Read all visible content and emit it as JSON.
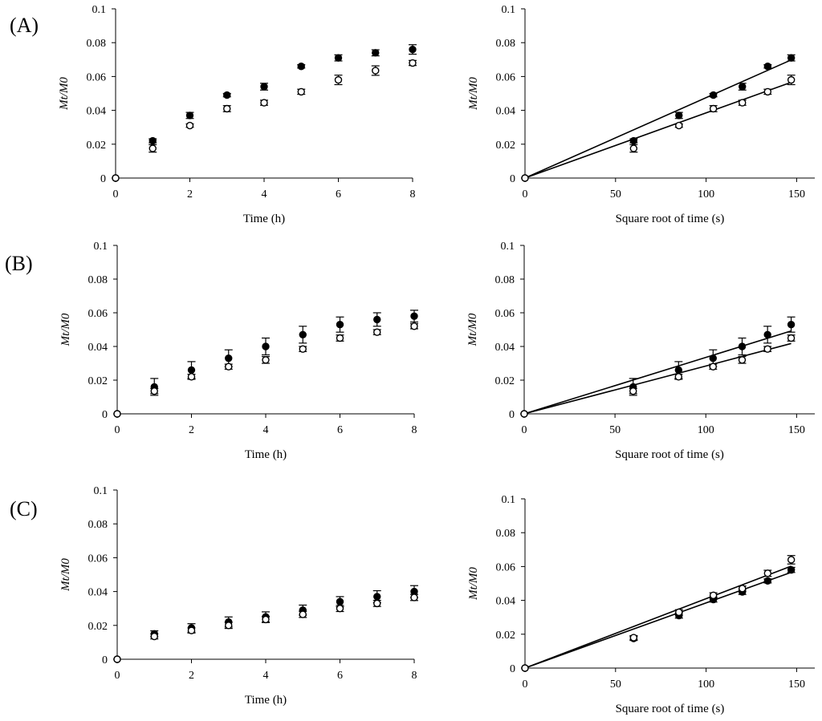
{
  "figure": {
    "panel_labels": [
      "(A)",
      "(B)",
      "(C)"
    ]
  },
  "colors": {
    "axis": "#000000",
    "filled_marker": "#000000",
    "open_marker_fill": "#ffffff"
  },
  "chart_data": [
    {
      "id": "A-time",
      "type": "scatter",
      "panel": "(A)",
      "xlabel": "Time (h)",
      "ylabel": "Mt/M0",
      "xlim": [
        0,
        8
      ],
      "ylim": [
        0,
        0.1
      ],
      "xticks": [
        "0",
        "2",
        "4",
        "6",
        "8"
      ],
      "yticks": [
        "0",
        "0.02",
        "0.04",
        "0.06",
        "0.08",
        "0.1"
      ],
      "series": [
        {
          "marker": "filled",
          "x": [
            0,
            1,
            2,
            3,
            4,
            5,
            6,
            7,
            8
          ],
          "y": [
            0,
            0.022,
            0.037,
            0.049,
            0.054,
            0.066,
            0.071,
            0.074,
            0.076
          ],
          "err": [
            0,
            0.0012,
            0.0018,
            0.001,
            0.002,
            0.001,
            0.0018,
            0.0018,
            0.0028
          ]
        },
        {
          "marker": "open",
          "x": [
            0,
            1,
            2,
            3,
            4,
            5,
            6,
            7,
            8
          ],
          "y": [
            0,
            0.0175,
            0.031,
            0.041,
            0.0445,
            0.051,
            0.058,
            0.0635,
            0.068
          ],
          "err": [
            0,
            0.0022,
            0.001,
            0.0018,
            0.0015,
            0.0015,
            0.0028,
            0.0028,
            0.0015
          ]
        }
      ]
    },
    {
      "id": "A-sqrt",
      "type": "scatter",
      "panel": "(A)",
      "xlabel": "Square root of time (s)",
      "ylabel": "Mt/M0",
      "xlim": [
        0,
        160
      ],
      "ylim": [
        0,
        0.1
      ],
      "xticks": [
        "0",
        "50",
        "100",
        "150"
      ],
      "yticks": [
        "0",
        "0.02",
        "0.04",
        "0.06",
        "0.08",
        "0.1"
      ],
      "series": [
        {
          "marker": "filled",
          "x": [
            0,
            60,
            85,
            104,
            120,
            134,
            147
          ],
          "y": [
            0,
            0.022,
            0.037,
            0.049,
            0.054,
            0.066,
            0.071
          ],
          "err": [
            0,
            0.0012,
            0.0018,
            0.001,
            0.002,
            0.001,
            0.0018
          ],
          "fit": {
            "slope": 0.000475,
            "x_end": 147
          }
        },
        {
          "marker": "open",
          "x": [
            0,
            60,
            85,
            104,
            120,
            134,
            147
          ],
          "y": [
            0,
            0.0175,
            0.031,
            0.041,
            0.0445,
            0.051,
            0.058
          ],
          "err": [
            0,
            0.0022,
            0.001,
            0.0018,
            0.0015,
            0.0015,
            0.0028
          ],
          "fit": {
            "slope": 0.000385,
            "x_end": 147
          }
        }
      ]
    },
    {
      "id": "B-time",
      "type": "scatter",
      "panel": "(B)",
      "xlabel": "Time (h)",
      "ylabel": "Mt/M0",
      "xlim": [
        0,
        8
      ],
      "ylim": [
        0,
        0.1
      ],
      "xticks": [
        "0",
        "2",
        "4",
        "6",
        "8"
      ],
      "yticks": [
        "0",
        "0.02",
        "0.04",
        "0.06",
        "0.08",
        "0.1"
      ],
      "series": [
        {
          "marker": "filled",
          "x": [
            0,
            1,
            2,
            3,
            4,
            5,
            6,
            7,
            8
          ],
          "y": [
            0,
            0.016,
            0.026,
            0.033,
            0.04,
            0.047,
            0.053,
            0.056,
            0.058
          ],
          "err": [
            0,
            0.005,
            0.005,
            0.005,
            0.005,
            0.005,
            0.0045,
            0.004,
            0.0035
          ]
        },
        {
          "marker": "open",
          "x": [
            0,
            1,
            2,
            3,
            4,
            5,
            6,
            7,
            8
          ],
          "y": [
            0,
            0.0135,
            0.022,
            0.028,
            0.032,
            0.0385,
            0.045,
            0.0485,
            0.052
          ],
          "err": [
            0,
            0.0015,
            0.0015,
            0.0015,
            0.002,
            0.0015,
            0.0018,
            0.0015,
            0.0015
          ]
        }
      ]
    },
    {
      "id": "B-sqrt",
      "type": "scatter",
      "panel": "(B)",
      "xlabel": "Square root of time (s)",
      "ylabel": "Mt/M0",
      "xlim": [
        0,
        160
      ],
      "ylim": [
        0,
        0.1
      ],
      "xticks": [
        "0",
        "50",
        "100",
        "150"
      ],
      "yticks": [
        "0",
        "0.02",
        "0.04",
        "0.06",
        "0.08",
        "0.1"
      ],
      "series": [
        {
          "marker": "filled",
          "x": [
            0,
            60,
            85,
            104,
            120,
            134,
            147
          ],
          "y": [
            0,
            0.016,
            0.026,
            0.033,
            0.04,
            0.047,
            0.053
          ],
          "err": [
            0,
            0.005,
            0.005,
            0.005,
            0.005,
            0.005,
            0.0045
          ],
          "fit": {
            "slope": 0.000335,
            "x_end": 147
          }
        },
        {
          "marker": "open",
          "x": [
            0,
            60,
            85,
            104,
            120,
            134,
            147
          ],
          "y": [
            0,
            0.0135,
            0.022,
            0.028,
            0.032,
            0.0385,
            0.045
          ],
          "err": [
            0,
            0.0015,
            0.0015,
            0.0015,
            0.002,
            0.0015,
            0.0018
          ],
          "fit": {
            "slope": 0.000284,
            "x_end": 147
          }
        }
      ]
    },
    {
      "id": "C-time",
      "type": "scatter",
      "panel": "(C)",
      "xlabel": "Time (h)",
      "ylabel": "Mt/M0",
      "xlim": [
        0,
        8
      ],
      "ylim": [
        0,
        0.1
      ],
      "xticks": [
        "0",
        "2",
        "4",
        "6",
        "8"
      ],
      "yticks": [
        "0",
        "0.02",
        "0.04",
        "0.06",
        "0.08",
        "0.1"
      ],
      "series": [
        {
          "marker": "filled",
          "x": [
            0,
            1,
            2,
            3,
            4,
            5,
            6,
            7,
            8
          ],
          "y": [
            0,
            0.015,
            0.0185,
            0.022,
            0.025,
            0.029,
            0.034,
            0.037,
            0.04
          ],
          "err": [
            0,
            0.0018,
            0.0025,
            0.003,
            0.003,
            0.003,
            0.003,
            0.0035,
            0.0035
          ]
        },
        {
          "marker": "open",
          "x": [
            0,
            1,
            2,
            3,
            4,
            5,
            6,
            7,
            8
          ],
          "y": [
            0,
            0.0135,
            0.017,
            0.02,
            0.0235,
            0.0265,
            0.03,
            0.033,
            0.0365
          ],
          "err": [
            0,
            0.0015,
            0.0015,
            0.0018,
            0.0018,
            0.0018,
            0.0018,
            0.0018,
            0.0018
          ]
        }
      ]
    },
    {
      "id": "C-sqrt",
      "type": "scatter",
      "panel": "(C)",
      "xlabel": "Square root of time (s)",
      "ylabel": "Mt/M0",
      "xlim": [
        0,
        160
      ],
      "ylim": [
        0,
        0.1
      ],
      "xticks": [
        "0",
        "50",
        "100",
        "150"
      ],
      "yticks": [
        "0",
        "0.02",
        "0.04",
        "0.06",
        "0.08",
        "0.1"
      ],
      "series": [
        {
          "marker": "filled",
          "x": [
            0,
            60,
            85,
            104,
            120,
            134,
            147
          ],
          "y": [
            0,
            0.0175,
            0.031,
            0.0405,
            0.045,
            0.0515,
            0.058
          ],
          "err": [
            0,
            0.0012,
            0.0015,
            0.0015,
            0.0015,
            0.0012,
            0.0015
          ],
          "fit": {
            "slope": 0.000385,
            "x_end": 147
          }
        },
        {
          "marker": "open",
          "x": [
            0,
            60,
            85,
            104,
            120,
            134,
            147
          ],
          "y": [
            0,
            0.018,
            0.033,
            0.043,
            0.047,
            0.056,
            0.064
          ],
          "err": [
            0,
            0.0012,
            0.0015,
            0.0015,
            0.0015,
            0.0018,
            0.0025
          ],
          "fit": {
            "slope": 0.00041,
            "x_end": 147
          }
        }
      ]
    }
  ]
}
